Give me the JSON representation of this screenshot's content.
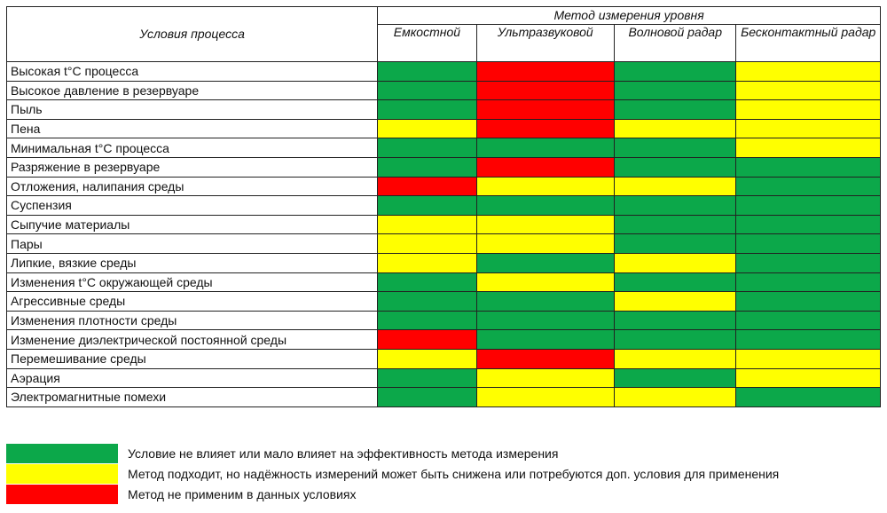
{
  "header": {
    "conditions_label": "Условия процесса",
    "group_label": "Метод измерения уровня",
    "methods": [
      "Емкостной",
      "Ультразвуковой",
      "Волновой радар",
      "Бесконтактный радар"
    ]
  },
  "colors": {
    "green": "#0ca84a",
    "yellow": "#ffff00",
    "red": "#ff0000"
  },
  "rows": [
    {
      "condition": "Высокая t°C процесса",
      "ratings": [
        "green",
        "red",
        "green",
        "yellow"
      ]
    },
    {
      "condition": "Высокое давление в резервуаре",
      "ratings": [
        "green",
        "red",
        "green",
        "yellow"
      ]
    },
    {
      "condition": "Пыль",
      "ratings": [
        "green",
        "red",
        "green",
        "yellow"
      ]
    },
    {
      "condition": "Пена",
      "ratings": [
        "yellow",
        "red",
        "yellow",
        "yellow"
      ]
    },
    {
      "condition": "Минимальная t°C процесса",
      "ratings": [
        "green",
        "green",
        "green",
        "yellow"
      ]
    },
    {
      "condition": "Разряжение в резервуаре",
      "ratings": [
        "green",
        "red",
        "green",
        "green"
      ]
    },
    {
      "condition": "Отложения, налипания среды",
      "ratings": [
        "red",
        "yellow",
        "yellow",
        "green"
      ]
    },
    {
      "condition": "Суспензия",
      "ratings": [
        "green",
        "green",
        "green",
        "green"
      ]
    },
    {
      "condition": "Сыпучие материалы",
      "ratings": [
        "yellow",
        "yellow",
        "green",
        "green"
      ]
    },
    {
      "condition": "Пары",
      "ratings": [
        "yellow",
        "yellow",
        "green",
        "green"
      ]
    },
    {
      "condition": "Липкие, вязкие среды",
      "ratings": [
        "yellow",
        "green",
        "yellow",
        "green"
      ]
    },
    {
      "condition": "Изменения t°C окружающей среды",
      "ratings": [
        "green",
        "yellow",
        "green",
        "green"
      ]
    },
    {
      "condition": "Агрессивные среды",
      "ratings": [
        "green",
        "green",
        "yellow",
        "green"
      ]
    },
    {
      "condition": "Изменения плотности среды",
      "ratings": [
        "green",
        "green",
        "green",
        "green"
      ]
    },
    {
      "condition": "Изменение диэлектрической постоянной среды",
      "ratings": [
        "red",
        "green",
        "green",
        "green"
      ]
    },
    {
      "condition": "Перемешивание среды",
      "ratings": [
        "yellow",
        "red",
        "yellow",
        "yellow"
      ]
    },
    {
      "condition": "Аэрация",
      "ratings": [
        "green",
        "yellow",
        "green",
        "yellow"
      ]
    },
    {
      "condition": "Электромагнитные помехи",
      "ratings": [
        "green",
        "yellow",
        "yellow",
        "green"
      ]
    }
  ],
  "legend": [
    {
      "color": "green",
      "text": "Условие не влияет или мало влияет на эффективность метода измерения"
    },
    {
      "color": "yellow",
      "text": "Метод подходит, но надёжность измерений может быть снижена или потребуются доп. условия для применения"
    },
    {
      "color": "red",
      "text": "Метод не применим в данных условиях"
    }
  ]
}
